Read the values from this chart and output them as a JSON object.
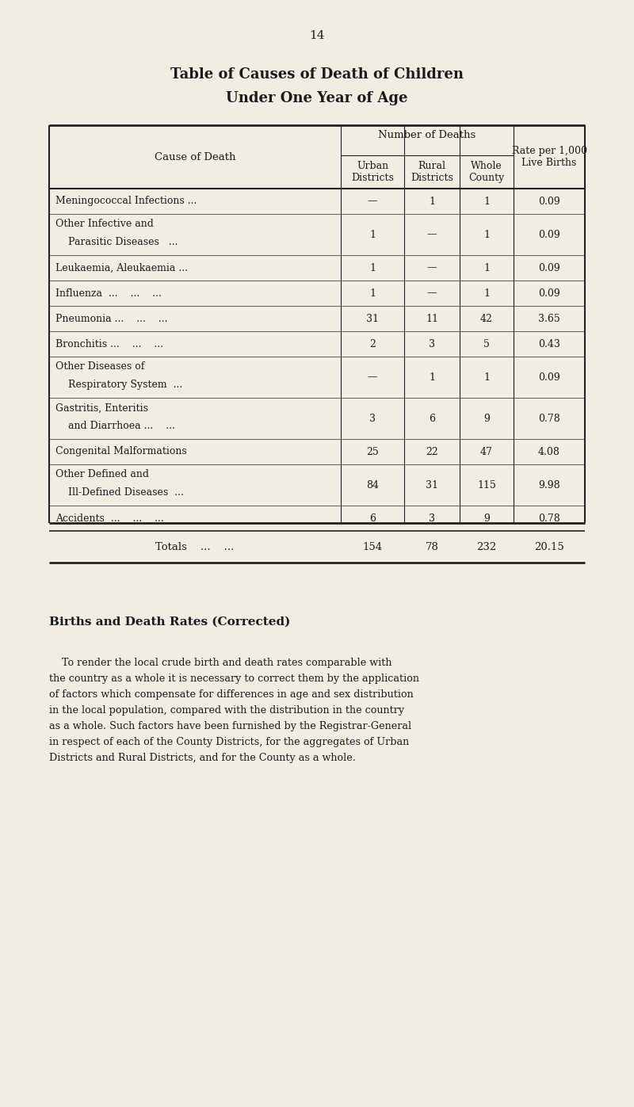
{
  "page_number": "14",
  "title_line1": "Table of Causes of Death of Children",
  "title_line2": "Under One Year of Age",
  "col_header_group": "Number of Deaths",
  "rows": [
    {
      "cause": "Meningococcal Infections ...",
      "cause2": "",
      "urban": "—",
      "rural": "1",
      "whole": "1",
      "rate": "0.09",
      "two_line": false
    },
    {
      "cause": "Other Infective and",
      "cause2": "    Parasitic Diseases   ...",
      "urban": "1",
      "rural": "—",
      "whole": "1",
      "rate": "0.09",
      "two_line": true
    },
    {
      "cause": "Leukaemia, Aleukaemia ...",
      "cause2": "",
      "urban": "1",
      "rural": "—",
      "whole": "1",
      "rate": "0.09",
      "two_line": false
    },
    {
      "cause": "Influenza  ...    ...    ...",
      "cause2": "",
      "urban": "1",
      "rural": "—",
      "whole": "1",
      "rate": "0.09",
      "two_line": false
    },
    {
      "cause": "Pneumonia ...    ...    ...",
      "cause2": "",
      "urban": "31",
      "rural": "11",
      "whole": "42",
      "rate": "3.65",
      "two_line": false
    },
    {
      "cause": "Bronchitis ...    ...    ...",
      "cause2": "",
      "urban": "2",
      "rural": "3",
      "whole": "5",
      "rate": "0.43",
      "two_line": false
    },
    {
      "cause": "Other Diseases of",
      "cause2": "    Respiratory System  ...",
      "urban": "—",
      "rural": "1",
      "whole": "1",
      "rate": "0.09",
      "two_line": true
    },
    {
      "cause": "Gastritis, Enteritis",
      "cause2": "    and Diarrhoea ...    ...",
      "urban": "3",
      "rural": "6",
      "whole": "9",
      "rate": "0.78",
      "two_line": true
    },
    {
      "cause": "Congenital Malformations",
      "cause2": "",
      "urban": "25",
      "rural": "22",
      "whole": "47",
      "rate": "4.08",
      "two_line": false
    },
    {
      "cause": "Other Defined and",
      "cause2": "    Ill-Defined Diseases  ...",
      "urban": "84",
      "rural": "31",
      "whole": "115",
      "rate": "9.98",
      "two_line": true
    },
    {
      "cause": "Accidents  ...    ...    ...",
      "cause2": "",
      "urban": "6",
      "rural": "3",
      "whole": "9",
      "rate": "0.78",
      "two_line": false
    }
  ],
  "totals": {
    "cause": "Totals    ...    ...",
    "urban": "154",
    "rural": "78",
    "whole": "232",
    "rate": "20.15"
  },
  "section_title": "Births and Death Rates (Corrected)",
  "paragraph_lines": [
    "    To render the local crude birth and death rates comparable with",
    "the country as a whole it is necessary to correct them by the application",
    "of factors which compensate for differences in age and sex distribution",
    "in the local population, compared with the distribution in the country",
    "as a whole. Such factors have been furnished by the Registrar-General",
    "in respect of each of the County Districts, for the aggregates of Urban",
    "Districts and Rural Districts, and for the County as a whole."
  ],
  "bg_color": "#f2ede0",
  "text_color": "#1a1a1a",
  "table_line_color": "#222222"
}
